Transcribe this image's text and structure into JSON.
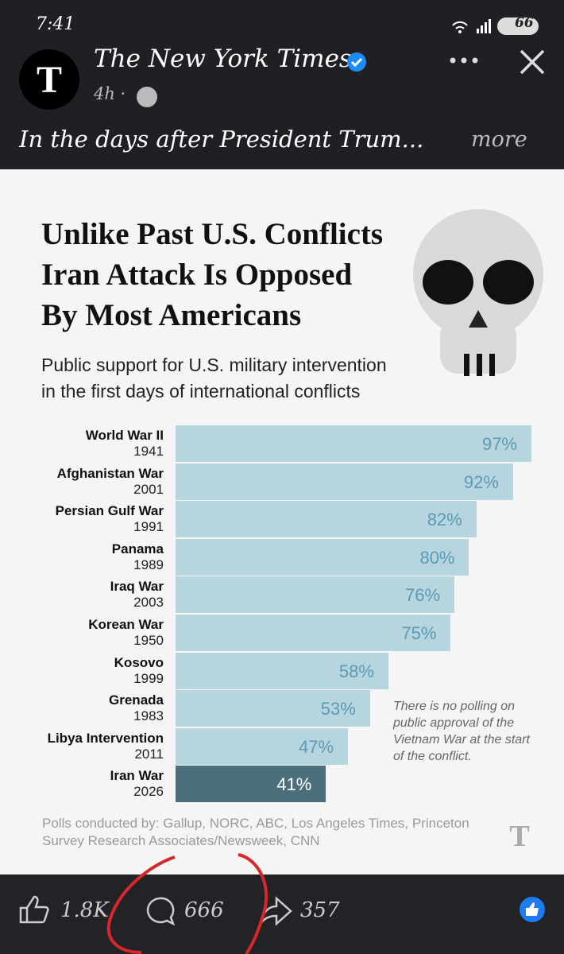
{
  "status_bar": {
    "time": "7:41",
    "battery": "66"
  },
  "post": {
    "author": "The New York Times",
    "age": "4h ·",
    "caption": "In the days after President Trum...",
    "more": "more"
  },
  "chart_data": {
    "type": "bar",
    "orientation": "horizontal",
    "title": "Unlike Past U.S. Conflicts\nIran Attack Is Opposed\nBy Most Americans",
    "subtitle": "Public support for U.S. military intervention\nin the first days of international conflicts",
    "categories": [
      "World War II",
      "Afghanistan War",
      "Persian Gulf War",
      "Panama",
      "Iraq War",
      "Korean War",
      "Kosovo",
      "Grenada",
      "Libya Intervention",
      "Iran War"
    ],
    "category_years": [
      "1941",
      "2001",
      "1991",
      "1989",
      "2003",
      "1950",
      "1999",
      "1983",
      "2011",
      "2026"
    ],
    "values": [
      97,
      92,
      82,
      80,
      76,
      75,
      58,
      53,
      47,
      41
    ],
    "value_labels": [
      "97%",
      "92%",
      "82%",
      "80%",
      "76%",
      "75%",
      "58%",
      "53%",
      "47%",
      "41%"
    ],
    "colors": [
      "#b7d5de",
      "#b7d5de",
      "#b7d5de",
      "#b7d5de",
      "#b7d5de",
      "#b7d5de",
      "#b7d5de",
      "#b7d5de",
      "#b7d5de",
      "#4b6f7c"
    ],
    "label_colors": [
      "#5b9ab4",
      "#5b9ab4",
      "#5b9ab4",
      "#5b9ab4",
      "#5b9ab4",
      "#5b9ab4",
      "#5b9ab4",
      "#5b9ab4",
      "#5b9ab4",
      "#ffffff"
    ],
    "annotation": "There is no polling on public approval of the Vietnam War at the start of the conflict.",
    "source": "Polls conducted by: Gallup, NORC, ABC, Los Angeles Times, Princeton Survey Research Associates/Newsweek, CNN"
  },
  "actions": {
    "likes": "1.8K",
    "comments": 666,
    "shares": 357
  }
}
